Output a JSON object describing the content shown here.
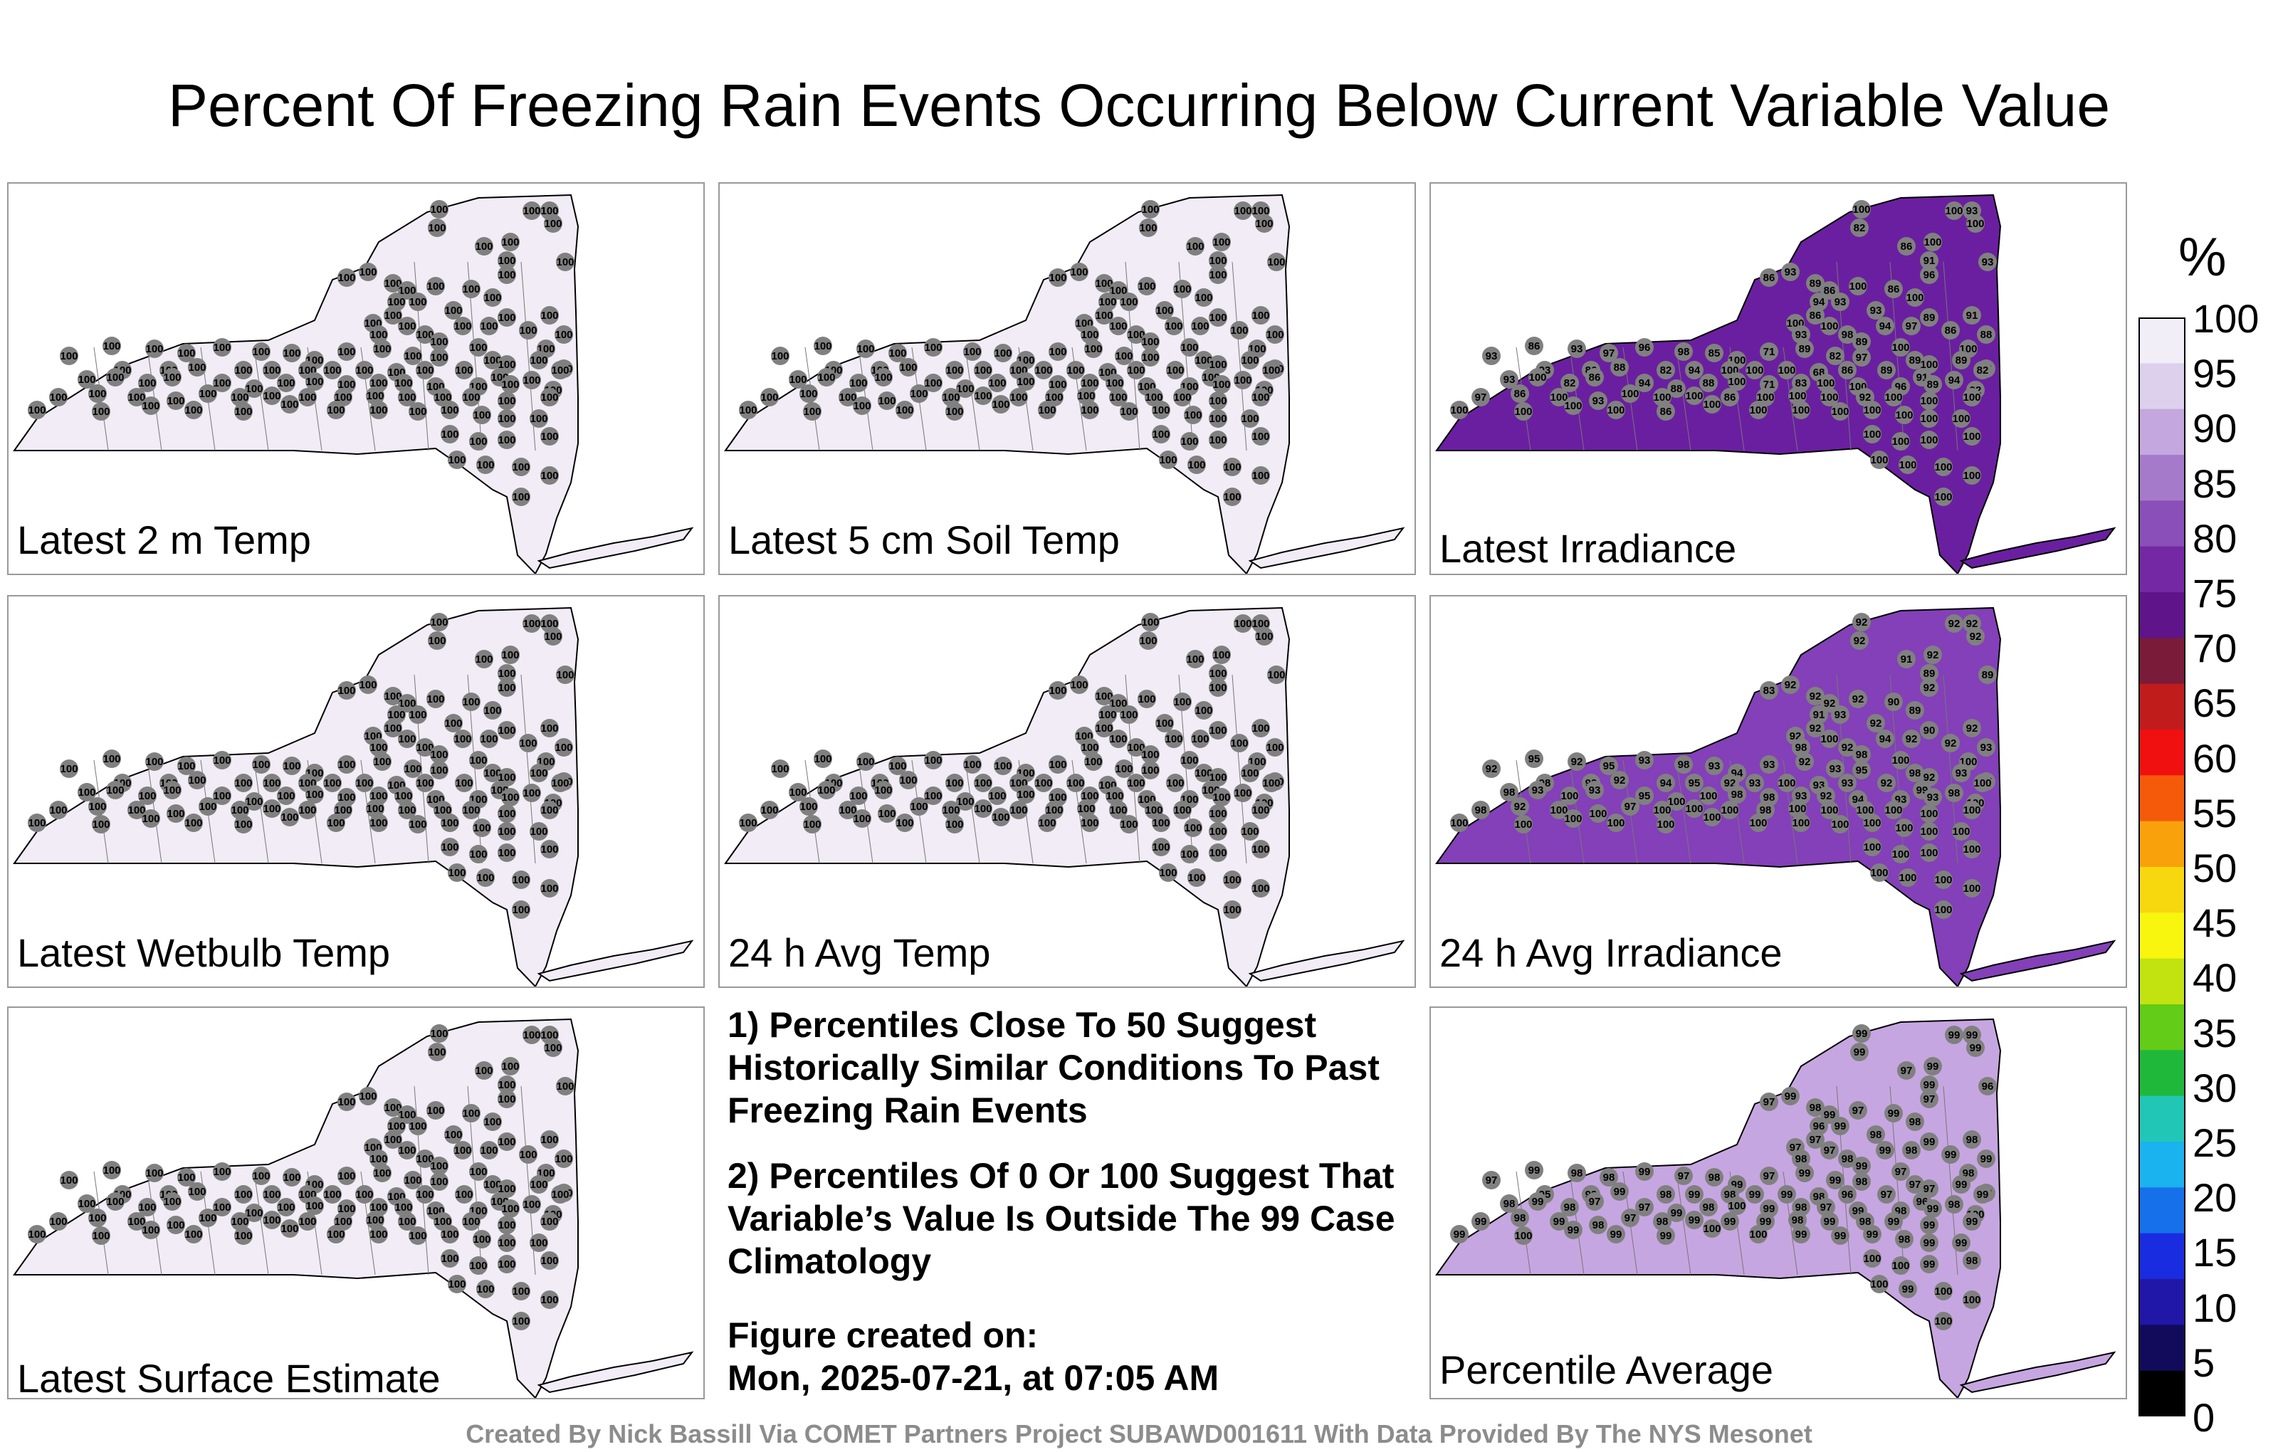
{
  "title": "Percent Of Freezing Rain Events Occurring Below Current Variable Value",
  "panels": [
    {
      "label": "Latest 2 m Temp",
      "fill": "#f1ecf5",
      "stations": [
        "100",
        "100",
        "100",
        "100",
        "100",
        "100",
        "100",
        "100",
        "100",
        "100",
        "100",
        "100",
        "100",
        "100",
        "100",
        "100",
        "100",
        "100",
        "100",
        "100",
        "100",
        "100",
        "100",
        "100",
        "100",
        "100",
        "100",
        "100",
        "100",
        "100",
        "100",
        "100",
        "100",
        "100",
        "100",
        "100",
        "100",
        "100",
        "100",
        "100",
        "100",
        "100",
        "100",
        "100",
        "100",
        "100",
        "100",
        "100",
        "100",
        "100",
        "100",
        "100",
        "100",
        "100",
        "100",
        "100",
        "100",
        "100",
        "100",
        "100",
        "100",
        "100",
        "100",
        "100",
        "100",
        "100",
        "100",
        "100",
        "100",
        "100",
        "100",
        "100",
        "100",
        "100",
        "100",
        "100",
        "100",
        "100",
        "100",
        "100",
        "100",
        "100",
        "100",
        "100",
        "100",
        "100",
        "100",
        "100",
        "100",
        "100",
        "100",
        "100",
        "100",
        "100",
        "100",
        "100",
        "100",
        "100",
        "100",
        "100",
        "100",
        "100",
        "100",
        "100",
        "100",
        "100",
        "100",
        "100",
        "100",
        "100",
        "100",
        "100",
        "100",
        "100",
        "100",
        "100"
      ]
    },
    {
      "label": "Latest 5 cm Soil Temp",
      "fill": "#f1ecf5",
      "stations": [
        "100",
        "100",
        "100",
        "100",
        "100",
        "100",
        "100",
        "100",
        "100",
        "100",
        "100",
        "100",
        "100",
        "100",
        "100",
        "100",
        "100",
        "100",
        "100",
        "100",
        "100",
        "100",
        "100",
        "100",
        "100",
        "100",
        "100",
        "100",
        "100",
        "100",
        "100",
        "100",
        "100",
        "100",
        "100",
        "100",
        "100",
        "100",
        "100",
        "100",
        "100",
        "100",
        "100",
        "100",
        "100",
        "100",
        "100",
        "100",
        "100",
        "100",
        "100",
        "100",
        "100",
        "100",
        "100",
        "100",
        "100",
        "100",
        "100",
        "100",
        "100",
        "100",
        "100",
        "100",
        "100",
        "100",
        "100",
        "100",
        "100",
        "100",
        "100",
        "100",
        "100",
        "100",
        "100",
        "100",
        "100",
        "100",
        "100",
        "100",
        "100",
        "100",
        "100",
        "100",
        "100",
        "100",
        "100",
        "100",
        "100",
        "100",
        "100",
        "100",
        "100",
        "100",
        "100",
        "100",
        "100",
        "100",
        "100",
        "100",
        "100",
        "100",
        "100",
        "100",
        "100",
        "100",
        "100",
        "100",
        "100",
        "100",
        "100",
        "100",
        "100",
        "100",
        "100",
        "100"
      ]
    },
    {
      "label": "Latest Irradiance",
      "fill": "#6a1fa0",
      "stations": [
        "100",
        "100",
        "93",
        "100",
        "82",
        "100",
        "86",
        "91",
        "93",
        "96",
        "93",
        "86",
        "89",
        "86",
        "100",
        "86",
        "100",
        "94",
        "93",
        "86",
        "93",
        "89",
        "91",
        "100",
        "100",
        "94",
        "97",
        "86",
        "88",
        "93",
        "98",
        "89",
        "100",
        "100",
        "86",
        "93",
        "96",
        "97",
        "98",
        "85",
        "100",
        "71",
        "89",
        "82",
        "97",
        "89",
        "100",
        "89",
        "86",
        "93",
        "86",
        "88",
        "93",
        "86",
        "82",
        "94",
        "100",
        "100",
        "100",
        "68",
        "86",
        "89",
        "91",
        "94",
        "82",
        "93",
        "100",
        "82",
        "94",
        "88",
        "88",
        "100",
        "71",
        "83",
        "100",
        "100",
        "96",
        "89",
        "92",
        "97",
        "86",
        "100",
        "93",
        "100",
        "100",
        "100",
        "86",
        "100",
        "100",
        "100",
        "92",
        "100",
        "100",
        "100",
        "100",
        "100",
        "100",
        "100",
        "86",
        "100",
        "100",
        "100",
        "100",
        "100",
        "100",
        "100",
        "100",
        "100",
        "100",
        "100",
        "100",
        "100",
        "100",
        "100",
        "100",
        "100"
      ]
    },
    {
      "label": "Latest Wetbulb Temp",
      "fill": "#f1ecf5",
      "stations": [
        "100",
        "100",
        "100",
        "100",
        "100",
        "100",
        "100",
        "100",
        "100",
        "100",
        "100",
        "100",
        "100",
        "100",
        "100",
        "100",
        "100",
        "100",
        "100",
        "100",
        "100",
        "100",
        "100",
        "100",
        "100",
        "100",
        "100",
        "100",
        "100",
        "100",
        "100",
        "100",
        "100",
        "100",
        "100",
        "100",
        "100",
        "100",
        "100",
        "100",
        "100",
        "100",
        "100",
        "100",
        "100",
        "100",
        "100",
        "100",
        "100",
        "100",
        "100",
        "100",
        "100",
        "100",
        "100",
        "100",
        "100",
        "100",
        "100",
        "100",
        "100",
        "100",
        "100",
        "100",
        "100",
        "100",
        "100",
        "100",
        "100",
        "100",
        "100",
        "100",
        "100",
        "100",
        "100",
        "100",
        "100",
        "100",
        "100",
        "100",
        "100",
        "100",
        "100",
        "100",
        "100",
        "100",
        "100",
        "100",
        "100",
        "100",
        "100",
        "100",
        "100",
        "100",
        "100",
        "100",
        "100",
        "100",
        "100",
        "100",
        "100",
        "100",
        "100",
        "100",
        "100",
        "100",
        "100",
        "100",
        "100",
        "100",
        "100",
        "100",
        "100",
        "100",
        "100",
        "100"
      ]
    },
    {
      "label": "24 h Avg Temp",
      "fill": "#f1ecf5",
      "stations": [
        "100",
        "100",
        "100",
        "100",
        "100",
        "100",
        "100",
        "100",
        "100",
        "100",
        "100",
        "100",
        "100",
        "100",
        "100",
        "100",
        "100",
        "100",
        "100",
        "100",
        "100",
        "100",
        "100",
        "100",
        "100",
        "100",
        "100",
        "100",
        "100",
        "100",
        "100",
        "100",
        "100",
        "100",
        "100",
        "100",
        "100",
        "100",
        "100",
        "100",
        "100",
        "100",
        "100",
        "100",
        "100",
        "100",
        "100",
        "100",
        "100",
        "100",
        "100",
        "100",
        "100",
        "100",
        "100",
        "100",
        "100",
        "100",
        "100",
        "100",
        "100",
        "100",
        "100",
        "100",
        "100",
        "100",
        "100",
        "100",
        "100",
        "100",
        "100",
        "100",
        "100",
        "100",
        "100",
        "100",
        "100",
        "100",
        "100",
        "100",
        "100",
        "100",
        "100",
        "100",
        "100",
        "100",
        "100",
        "100",
        "100",
        "100",
        "100",
        "100",
        "100",
        "100",
        "100",
        "100",
        "100",
        "100",
        "100",
        "100",
        "100",
        "100",
        "100",
        "100",
        "100",
        "100",
        "100",
        "100",
        "100",
        "100",
        "100",
        "100",
        "100",
        "100",
        "100",
        "100"
      ]
    },
    {
      "label": "24 h Avg Irradiance",
      "fill": "#8340b8",
      "stations": [
        "92",
        "92",
        "92",
        "92",
        "92",
        "92",
        "91",
        "89",
        "89",
        "92",
        "92",
        "83",
        "92",
        "92",
        "92",
        "90",
        "89",
        "91",
        "93",
        "92",
        "92",
        "90",
        "92",
        "92",
        "100",
        "94",
        "92",
        "92",
        "93",
        "98",
        "92",
        "98",
        "100",
        "100",
        "95",
        "92",
        "93",
        "95",
        "98",
        "93",
        "94",
        "93",
        "92",
        "93",
        "95",
        "98",
        "92",
        "93",
        "95",
        "92",
        "92",
        "92",
        "98",
        "93",
        "94",
        "95",
        "92",
        "93",
        "100",
        "93",
        "93",
        "92",
        "99",
        "98",
        "100",
        "98",
        "93",
        "100",
        "95",
        "100",
        "100",
        "98",
        "98",
        "93",
        "92",
        "94",
        "93",
        "93",
        "100",
        "98",
        "92",
        "100",
        "100",
        "97",
        "100",
        "100",
        "100",
        "98",
        "100",
        "100",
        "100",
        "100",
        "100",
        "100",
        "100",
        "100",
        "100",
        "100",
        "100",
        "100",
        "100",
        "100",
        "100",
        "100",
        "100",
        "100",
        "100",
        "100",
        "100",
        "100",
        "100",
        "100",
        "100",
        "100",
        "100",
        "100"
      ]
    },
    {
      "label": "Latest Surface Estimate",
      "fill": "#f1ecf5",
      "stations": [
        "100",
        "100",
        "100",
        "100",
        "100",
        "100",
        "100",
        "100",
        "100",
        "100",
        "100",
        "100",
        "100",
        "100",
        "100",
        "100",
        "100",
        "100",
        "100",
        "100",
        "100",
        "100",
        "100",
        "100",
        "100",
        "100",
        "100",
        "100",
        "100",
        "100",
        "100",
        "100",
        "100",
        "100",
        "100",
        "100",
        "100",
        "100",
        "100",
        "100",
        "100",
        "100",
        "100",
        "100",
        "100",
        "100",
        "100",
        "100",
        "100",
        "100",
        "100",
        "100",
        "100",
        "100",
        "100",
        "100",
        "100",
        "100",
        "100",
        "100",
        "100",
        "100",
        "100",
        "100",
        "100",
        "100",
        "100",
        "100",
        "100",
        "100",
        "100",
        "100",
        "100",
        "100",
        "100",
        "100",
        "100",
        "100",
        "100",
        "100",
        "100",
        "100",
        "100",
        "100",
        "100",
        "100",
        "100",
        "100",
        "100",
        "100",
        "100",
        "100",
        "100",
        "100",
        "100",
        "100",
        "100",
        "100",
        "100",
        "100",
        "100",
        "100",
        "100",
        "100",
        "100",
        "100",
        "100",
        "100",
        "100",
        "100",
        "100",
        "100",
        "100",
        "100",
        "100",
        "100"
      ]
    },
    {
      "label": "Percentile Average",
      "fill": "#c6a6e0",
      "stations": [
        "99",
        "99",
        "99",
        "99",
        "99",
        "99",
        "97",
        "99",
        "96",
        "97",
        "99",
        "97",
        "98",
        "99",
        "97",
        "99",
        "98",
        "96",
        "99",
        "97",
        "98",
        "99",
        "98",
        "97",
        "97",
        "99",
        "98",
        "99",
        "99",
        "98",
        "98",
        "99",
        "97",
        "98",
        "99",
        "98",
        "99",
        "98",
        "97",
        "98",
        "99",
        "97",
        "99",
        "99",
        "98",
        "97",
        "97",
        "99",
        "98",
        "97",
        "99",
        "99",
        "95",
        "97",
        "98",
        "99",
        "98",
        "99",
        "99",
        "98",
        "96",
        "97",
        "96",
        "98",
        "99",
        "98",
        "99",
        "98",
        "97",
        "99",
        "98",
        "100",
        "99",
        "98",
        "97",
        "99",
        "98",
        "99",
        "100",
        "99",
        "98",
        "99",
        "98",
        "97",
        "98",
        "99",
        "99",
        "99",
        "98",
        "99",
        "98",
        "99",
        "99",
        "99",
        "99",
        "100",
        "99",
        "99",
        "99",
        "100",
        "100",
        "99",
        "99",
        "99",
        "98",
        "99",
        "99",
        "100",
        "100",
        "99",
        "98",
        "100",
        "99",
        "100",
        "100",
        "100"
      ]
    }
  ],
  "notes": {
    "note1": "1) Percentiles Close To 50 Suggest Historically Similar Conditions To Past Freezing Rain Events",
    "note2": "2) Percentiles Of 0 Or 100 Suggest That Variable’s Value Is Outside The 99 Case Climatology",
    "created_label": "Figure created on:",
    "created_value": "Mon, 2025-07-21, at 07:05 AM"
  },
  "colorbar": {
    "unit": "%",
    "ticks": [
      "100",
      "95",
      "90",
      "85",
      "80",
      "75",
      "70",
      "65",
      "60",
      "55",
      "50",
      "45",
      "40",
      "35",
      "30",
      "25",
      "20",
      "15",
      "10",
      "5",
      "0"
    ],
    "colors": [
      "#f2eef8",
      "#ddd0ec",
      "#c4a7de",
      "#a67acb",
      "#8a4fb8",
      "#7428a3",
      "#5f1489",
      "#7a1b3a",
      "#c11c1c",
      "#f01010",
      "#f55a0a",
      "#f9a10a",
      "#f7d70e",
      "#f8f60f",
      "#c2e30f",
      "#63cc18",
      "#1fb83b",
      "#22c6b6",
      "#1ab2ef",
      "#1570ea",
      "#1a2ce0",
      "#2016a8",
      "#120b5c",
      "#000000"
    ]
  },
  "credit": "Created By Nick Bassill Via COMET Partners Project SUBAWD001611 With Data Provided By The NYS Mesonet"
}
